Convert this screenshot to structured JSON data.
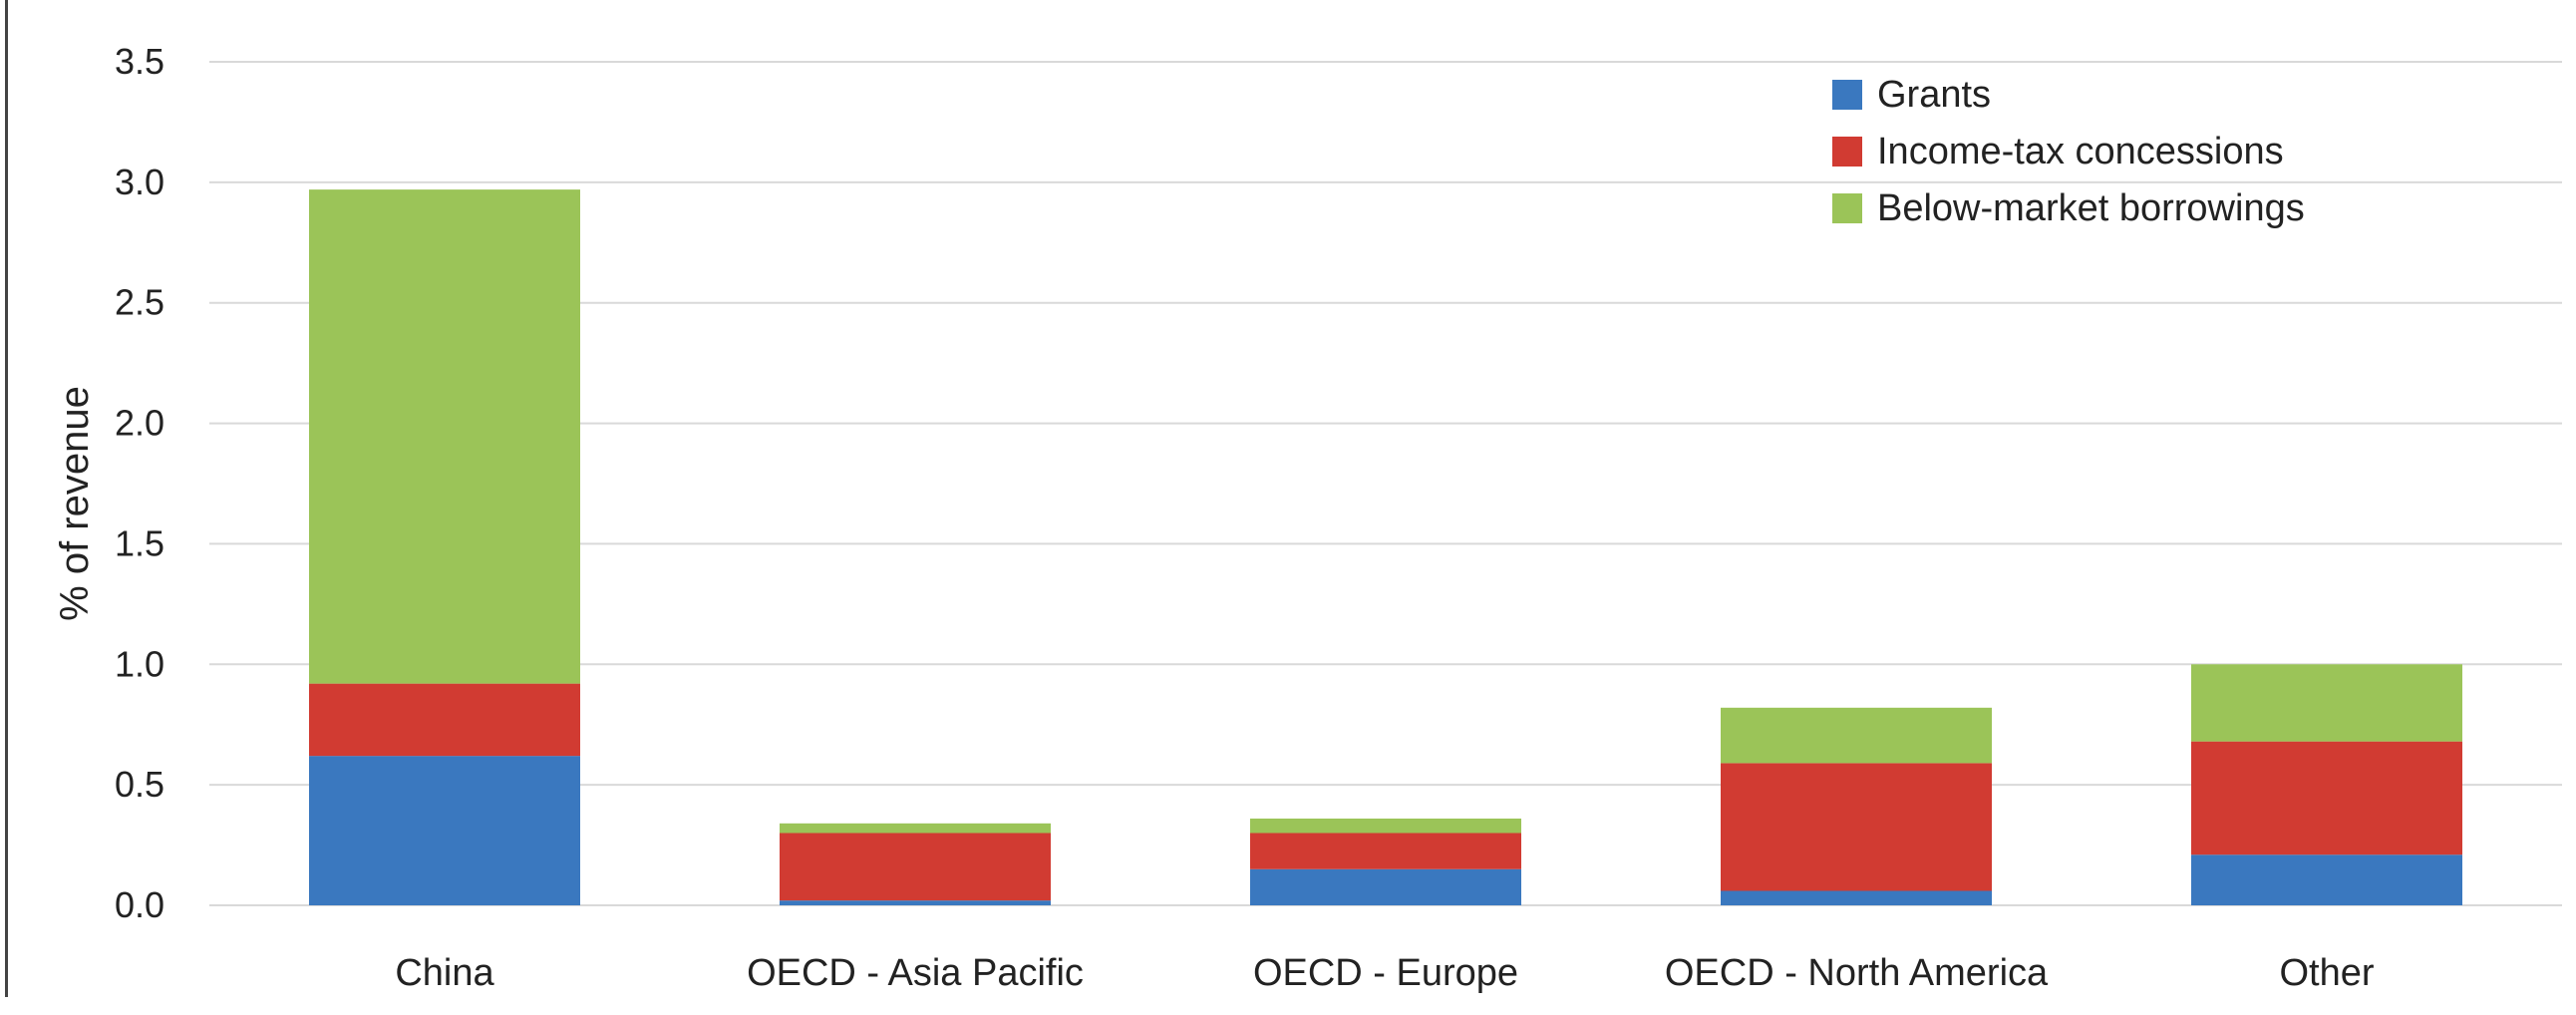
{
  "chart_data": {
    "type": "bar",
    "stacked": true,
    "title": "",
    "xlabel": "",
    "ylabel": "% of revenue",
    "ylim": [
      0,
      3.5
    ],
    "yticks": [
      "0.0",
      "0.5",
      "1.0",
      "1.5",
      "2.0",
      "2.5",
      "3.0",
      "3.5"
    ],
    "grid": true,
    "legend_position": "top-right",
    "categories": [
      "China",
      "OECD - Asia Pacific",
      "OECD - Europe",
      "OECD - North America",
      "Other"
    ],
    "series": [
      {
        "name": "Grants",
        "color": "#3a78bf",
        "values": [
          0.62,
          0.02,
          0.15,
          0.06,
          0.21
        ]
      },
      {
        "name": "Income-tax concessions",
        "color": "#d13b32",
        "values": [
          0.3,
          0.28,
          0.15,
          0.53,
          0.47
        ]
      },
      {
        "name": "Below-market borrowings",
        "color": "#9bc458",
        "values": [
          2.05,
          0.04,
          0.06,
          0.23,
          0.32
        ]
      }
    ]
  }
}
